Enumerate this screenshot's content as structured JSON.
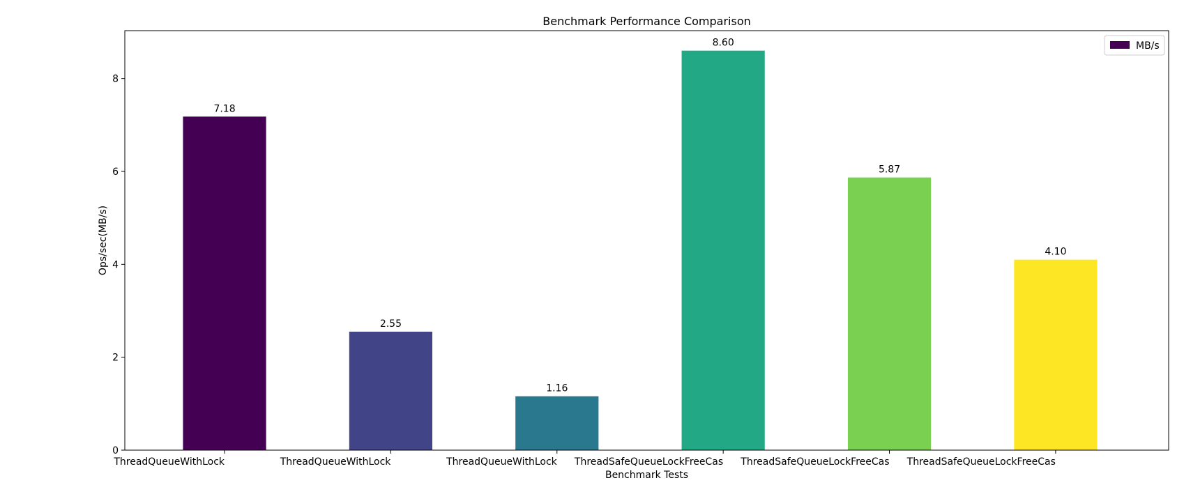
{
  "chart_data": {
    "type": "bar",
    "title": "Benchmark Performance Comparison",
    "xlabel": "Benchmark Tests",
    "ylabel": "Ops/sec(MB/s)",
    "categories": [
      "ThreadQueueWithLock",
      "ThreadQueueWithLock",
      "ThreadQueueWithLock",
      "ThreadSafeQueueLockFreeCas",
      "ThreadSafeQueueLockFreeCas",
      "ThreadSafeQueueLockFreeCas"
    ],
    "series": [
      {
        "name": "MB/s",
        "values": [
          7.18,
          2.55,
          1.16,
          8.6,
          5.87,
          4.1
        ]
      }
    ],
    "data_labels": [
      "7.18",
      "2.55",
      "1.16",
      "8.60",
      "5.87",
      "4.10"
    ],
    "bar_colors": [
      "#440154",
      "#414487",
      "#2a788e",
      "#22a884",
      "#7ad151",
      "#fde725"
    ],
    "yticks": [
      0,
      2,
      4,
      6,
      8
    ],
    "ylim": [
      0,
      9.03
    ],
    "grid": false,
    "legend": {
      "position": "top-right",
      "entries": [
        "MB/s"
      ],
      "color": "#440154"
    }
  }
}
